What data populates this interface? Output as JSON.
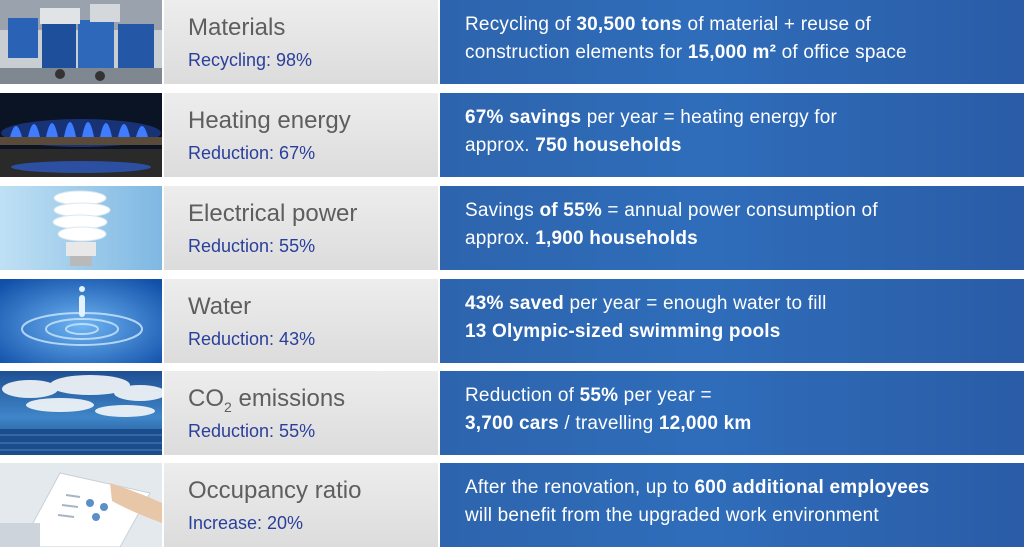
{
  "rows": [
    {
      "image": "recycling-bins-photo",
      "title": "Materials",
      "subtitle": "Recycling: 98%",
      "line1": [
        {
          "t": "Recycling of ",
          "b": false
        },
        {
          "t": "30,500 tons",
          "b": true
        },
        {
          "t": " of material + reuse of",
          "b": false
        }
      ],
      "line2": [
        {
          "t": "construction elements for ",
          "b": false
        },
        {
          "t": "15,000 m²",
          "b": true
        },
        {
          "t": " of office space",
          "b": false
        }
      ]
    },
    {
      "image": "gas-flame-photo",
      "title": "Heating energy",
      "subtitle": "Reduction: 67%",
      "line1": [
        {
          "t": "67% savings",
          "b": true
        },
        {
          "t": " per year = heating energy for",
          "b": false
        }
      ],
      "line2": [
        {
          "t": "approx. ",
          "b": false
        },
        {
          "t": "750 households",
          "b": true
        }
      ]
    },
    {
      "image": "energy-saving-bulb-photo",
      "title": "Electrical power",
      "subtitle": "Reduction: 55%",
      "line1": [
        {
          "t": "Savings ",
          "b": false
        },
        {
          "t": "of 55%",
          "b": true
        },
        {
          "t": " = annual power consumption of",
          "b": false
        }
      ],
      "line2": [
        {
          "t": "approx. ",
          "b": false
        },
        {
          "t": "1,900 households",
          "b": true
        }
      ]
    },
    {
      "image": "water-drop-photo",
      "title": "Water",
      "subtitle": "Reduction: 43%",
      "line1": [
        {
          "t": "43% saved",
          "b": true
        },
        {
          "t": " per year = enough water to fill",
          "b": false
        }
      ],
      "line2": [
        {
          "t": "13 Olympic-sized swimming pools",
          "b": true
        }
      ]
    },
    {
      "image": "clouds-sea-photo",
      "title": "CO",
      "title_sub": "2",
      "title_rest": " emissions",
      "subtitle": "Reduction: 55%",
      "line1": [
        {
          "t": "Reduction of ",
          "b": false
        },
        {
          "t": "55%",
          "b": true
        },
        {
          "t": " per year =",
          "b": false
        }
      ],
      "line2": [
        {
          "t": "3,700 cars",
          "b": true
        },
        {
          "t": " / travelling ",
          "b": false
        },
        {
          "t": "12,000 km",
          "b": true
        }
      ]
    },
    {
      "image": "office-papers-photo",
      "title": "Occupancy ratio",
      "subtitle": "Increase: 20%",
      "line1": [
        {
          "t": "After the renovation, up to ",
          "b": false
        },
        {
          "t": "600 additional employees",
          "b": true
        }
      ],
      "line2": [
        {
          "t": "will benefit from the upgraded work environment",
          "b": false
        }
      ]
    }
  ],
  "colors": {
    "title_gray": "#5e5e5e",
    "subtitle_blue": "#2a3f9b",
    "panel_blue": "#2f6dba",
    "mid_gray": "#e6e6e6"
  }
}
